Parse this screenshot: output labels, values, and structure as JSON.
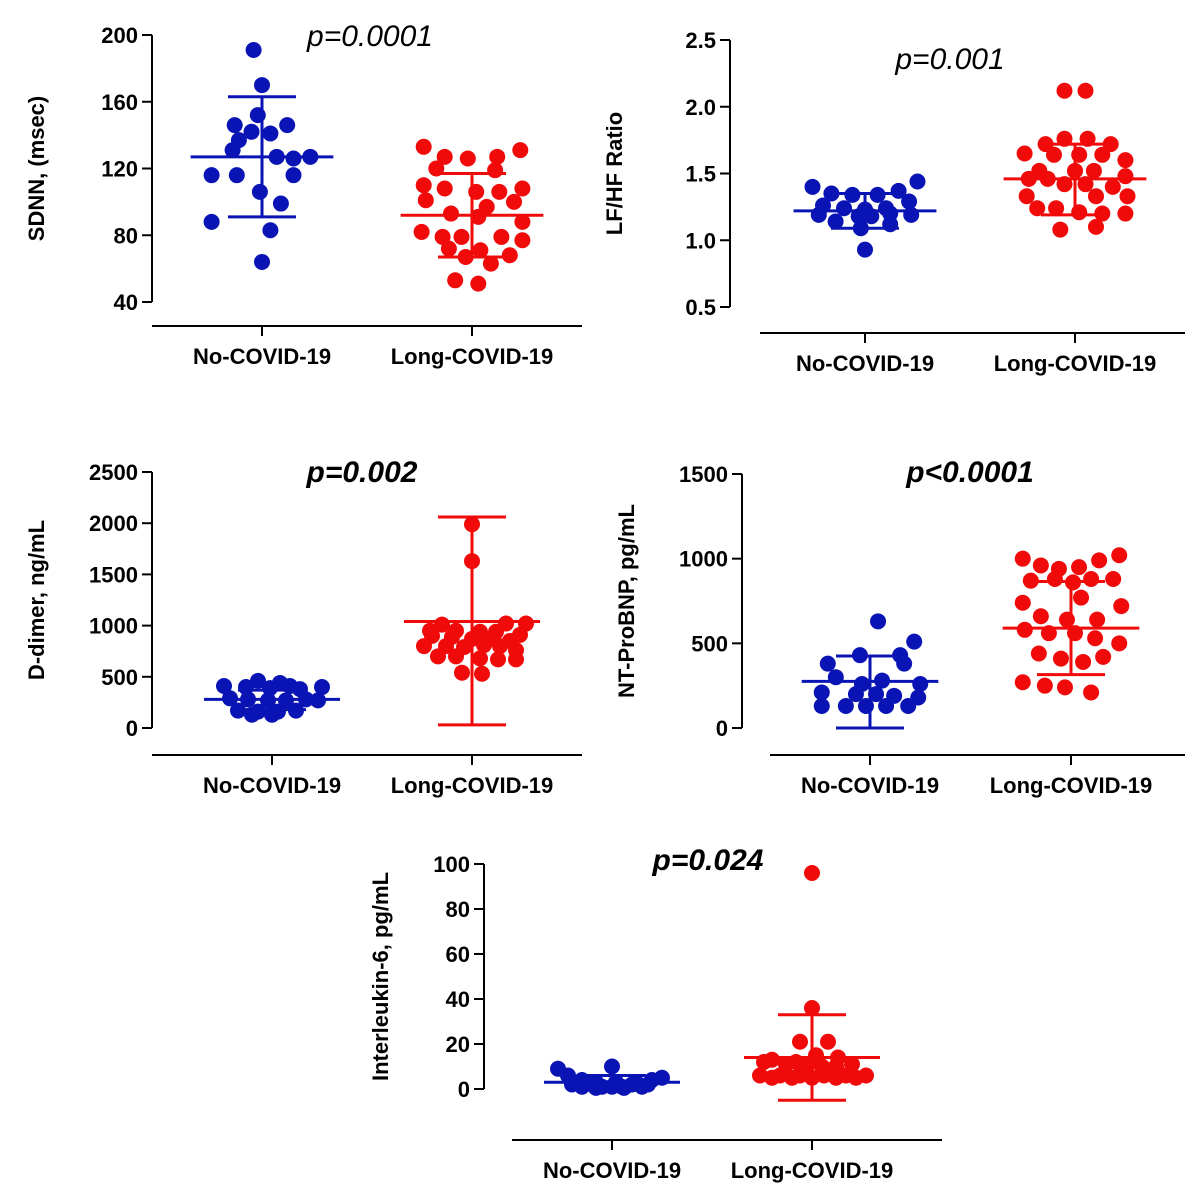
{
  "colors": {
    "no_covid": "#0a14b4",
    "long_covid": "#f00a0a",
    "axis": "#000000"
  },
  "chart_data": [
    {
      "id": "sdnn",
      "type": "scatter",
      "ylabel": "SDNN, (msec)",
      "pvalue": "p=0.0001",
      "pvalue_bold": false,
      "categories": [
        "No-COVID-19",
        "Long-COVID-19"
      ],
      "ylim": [
        40,
        200
      ],
      "yticks": [
        40,
        80,
        120,
        160,
        200
      ],
      "ytick_labels": [
        "40",
        "80",
        "120",
        "160",
        "200"
      ],
      "series": [
        {
          "name": "No-COVID-19",
          "color": "#0a14b4",
          "mean": 127,
          "sd_low": 91,
          "sd_high": 163,
          "x": [
            -0.04,
            0,
            -0.02,
            -0.13,
            -0.05,
            0.04,
            -0.11,
            0.12,
            -0.14,
            0.07,
            0.23,
            0.15,
            -0.24,
            -0.12,
            0.15,
            -0.01,
            0.09,
            -0.24,
            0.04,
            0
          ],
          "y": [
            191,
            170,
            152,
            146,
            142,
            141,
            137,
            146,
            131,
            127,
            127,
            126,
            116,
            116,
            116,
            106,
            99,
            88,
            83,
            64
          ]
        },
        {
          "name": "Long-COVID-19",
          "color": "#f00a0a",
          "mean": 92,
          "sd_low": 67,
          "sd_high": 117,
          "x": [
            -0.23,
            0.23,
            -0.13,
            -0.02,
            0.12,
            -0.17,
            0.11,
            -0.23,
            0.24,
            -0.13,
            0.02,
            0.13,
            -0.22,
            0.2,
            0.07,
            -0.1,
            0.03,
            0.24,
            -0.24,
            -0.14,
            -0.05,
            0.14,
            0.24,
            -0.11,
            0.04,
            0.18,
            -0.03,
            0.09,
            -0.08,
            0.03
          ],
          "y": [
            133,
            131,
            127,
            126,
            127,
            120,
            119,
            110,
            108,
            108,
            106,
            106,
            101,
            100,
            97,
            93,
            91,
            88,
            82,
            79,
            79,
            79,
            77,
            72,
            71,
            68,
            67,
            63,
            53,
            51
          ]
        }
      ]
    },
    {
      "id": "lfhf",
      "type": "scatter",
      "ylabel": "LF/HF Ratio",
      "pvalue": "p=0.001",
      "pvalue_bold": false,
      "categories": [
        "No-COVID-19",
        "Long-COVID-19"
      ],
      "ylim": [
        0.5,
        2.5
      ],
      "yticks": [
        0.5,
        1.0,
        1.5,
        2.0,
        2.5
      ],
      "ytick_labels": [
        "0.5",
        "1.0",
        "1.5",
        "2.0",
        "2.5"
      ],
      "series": [
        {
          "name": "No-COVID-19",
          "color": "#0a14b4",
          "mean": 1.22,
          "sd_low": 1.09,
          "sd_high": 1.35,
          "x": [
            0.25,
            -0.25,
            -0.16,
            0.16,
            -0.06,
            0.06,
            0.21,
            -0.2,
            -0.1,
            0,
            0.1,
            -0.22,
            -0.03,
            0.03,
            0.12,
            0.22,
            -0.14,
            -0.02,
            0.12,
            0
          ],
          "y": [
            1.44,
            1.4,
            1.35,
            1.37,
            1.34,
            1.34,
            1.29,
            1.26,
            1.24,
            1.23,
            1.24,
            1.19,
            1.18,
            1.18,
            1.2,
            1.19,
            1.14,
            1.09,
            1.12,
            0.93
          ]
        },
        {
          "name": "Long-COVID-19",
          "color": "#f00a0a",
          "mean": 1.46,
          "sd_low": 1.19,
          "sd_high": 1.72,
          "x": [
            -0.05,
            0.05,
            -0.05,
            0.06,
            -0.14,
            0.17,
            -0.24,
            -0.1,
            0.02,
            0.13,
            0.24,
            -0.17,
            0,
            0.09,
            0.24,
            -0.22,
            -0.13,
            -0.05,
            0.05,
            0.18,
            -0.23,
            0.1,
            0.25,
            -0.18,
            -0.09,
            0.02,
            0.13,
            0.24,
            -0.07,
            0.1
          ],
          "y": [
            2.12,
            2.12,
            1.76,
            1.76,
            1.72,
            1.72,
            1.65,
            1.64,
            1.64,
            1.64,
            1.6,
            1.52,
            1.52,
            1.52,
            1.48,
            1.46,
            1.46,
            1.42,
            1.42,
            1.4,
            1.33,
            1.33,
            1.33,
            1.24,
            1.24,
            1.21,
            1.2,
            1.2,
            1.08,
            1.1
          ]
        }
      ]
    },
    {
      "id": "ddimer",
      "type": "scatter",
      "ylabel": "D-dimer,  ng/mL",
      "pvalue": "p=0.002",
      "pvalue_bold": true,
      "categories": [
        "No-COVID-19",
        "Long-COVID-19"
      ],
      "ylim": [
        0,
        2500
      ],
      "yticks": [
        0,
        500,
        1000,
        1500,
        2000,
        2500
      ],
      "ytick_labels": [
        "0",
        "500",
        "1000",
        "1500",
        "2000",
        "2500"
      ],
      "series": [
        {
          "name": "No-COVID-19",
          "color": "#0a14b4",
          "mean": 280,
          "sd_low": 180,
          "sd_high": 370,
          "x": [
            -0.07,
            0.04,
            -0.24,
            0.09,
            -0.13,
            -0.01,
            0.14,
            0.25,
            -0.21,
            -0.12,
            -0.02,
            0.07,
            0.17,
            0.23,
            -0.17,
            -0.07,
            0.03,
            0.12,
            -0.1,
            0
          ],
          "y": [
            460,
            440,
            410,
            410,
            400,
            390,
            380,
            400,
            290,
            280,
            270,
            270,
            280,
            270,
            170,
            160,
            160,
            170,
            130,
            130
          ]
        },
        {
          "name": "Long-COVID-19",
          "color": "#f00a0a",
          "mean": 1040,
          "sd_low": 30,
          "sd_high": 2060,
          "x": [
            0,
            0,
            -0.15,
            0.17,
            0.27,
            -0.21,
            -0.08,
            0.04,
            0.12,
            0.24,
            -0.2,
            -0.1,
            0,
            0.09,
            0.19,
            -0.24,
            -0.13,
            -0.04,
            0.06,
            0.14,
            0.22,
            -0.17,
            -0.08,
            0.04,
            0.13,
            0.22,
            -0.05,
            0.05
          ],
          "y": [
            1990,
            1630,
            1010,
            1020,
            1020,
            950,
            950,
            940,
            940,
            910,
            900,
            890,
            870,
            870,
            850,
            800,
            800,
            790,
            810,
            800,
            760,
            700,
            700,
            680,
            670,
            670,
            540,
            530
          ]
        }
      ]
    },
    {
      "id": "ntprobnp",
      "type": "scatter",
      "ylabel": "NT-ProBNP, pg/mL",
      "pvalue": "p<0.0001",
      "pvalue_bold": true,
      "categories": [
        "No-COVID-19",
        "Long-COVID-19"
      ],
      "ylim": [
        0,
        1500
      ],
      "yticks": [
        0,
        500,
        1000,
        1500
      ],
      "ytick_labels": [
        "0",
        "500",
        "1000",
        "1500"
      ],
      "series": [
        {
          "name": "No-COVID-19",
          "color": "#0a14b4",
          "mean": 275,
          "sd_low": 0,
          "sd_high": 425,
          "x": [
            0.04,
            0.22,
            -0.05,
            0.15,
            -0.21,
            0.17,
            -0.17,
            -0.04,
            0.06,
            0.25,
            -0.24,
            -0.07,
            0.03,
            0.12,
            0.24,
            -0.24,
            -0.12,
            -0.02,
            0.08,
            0.19
          ],
          "y": [
            630,
            510,
            430,
            430,
            380,
            380,
            300,
            260,
            280,
            260,
            210,
            200,
            200,
            190,
            180,
            130,
            130,
            130,
            130,
            130
          ]
        },
        {
          "name": "Long-COVID-19",
          "color": "#f00a0a",
          "mean": 590,
          "sd_low": 315,
          "sd_high": 865,
          "x": [
            -0.24,
            -0.15,
            -0.06,
            0.04,
            0.14,
            0.24,
            -0.2,
            -0.08,
            0.01,
            0.1,
            0.21,
            -0.24,
            0.05,
            0.25,
            -0.15,
            -0.02,
            0.13,
            -0.23,
            -0.11,
            0.02,
            0.12,
            0.24,
            -0.16,
            -0.05,
            0.06,
            0.16,
            -0.24,
            -0.13,
            -0.03,
            0.1
          ],
          "y": [
            1000,
            960,
            940,
            950,
            990,
            1020,
            870,
            880,
            860,
            880,
            880,
            740,
            770,
            720,
            660,
            640,
            640,
            580,
            560,
            560,
            530,
            500,
            440,
            410,
            390,
            420,
            270,
            250,
            240,
            210
          ]
        }
      ]
    },
    {
      "id": "il6",
      "type": "scatter",
      "ylabel": "Interleukin-6, pg/mL",
      "pvalue": "p=0.024",
      "pvalue_bold": true,
      "categories": [
        "No-COVID-19",
        "Long-COVID-19"
      ],
      "ylim": [
        0,
        100
      ],
      "yticks": [
        0,
        20,
        40,
        60,
        80,
        100
      ],
      "ytick_labels": [
        "0",
        "20",
        "40",
        "60",
        "80",
        "100"
      ],
      "series": [
        {
          "name": "No-COVID-19",
          "color": "#0a14b4",
          "mean": 3,
          "sd_low": 0,
          "sd_high": 6,
          "x": [
            0.0,
            -0.27,
            0.25,
            -0.22,
            -0.15,
            -0.08,
            0.02,
            0.12,
            0.2,
            -0.2,
            -0.1,
            0,
            0.1,
            0.18,
            -0.15,
            -0.05,
            0.05,
            0.15,
            -0.08,
            0.06
          ],
          "y": [
            10,
            9,
            5,
            6,
            4,
            3,
            3,
            3,
            4,
            2,
            2,
            1,
            2,
            2,
            1,
            1,
            1,
            1,
            0.5,
            0.5
          ]
        },
        {
          "name": "Long-COVID-19",
          "color": "#f00a0a",
          "mean": 14,
          "sd_low": -5,
          "sd_high": 33,
          "x": [
            0,
            0,
            -0.06,
            0.08,
            -0.2,
            0.02,
            0.13,
            -0.08,
            0.05,
            -0.24,
            -0.13,
            -0.02,
            0.12,
            0.2,
            -0.26,
            -0.16,
            -0.06,
            0.06,
            0.17,
            0.27,
            -0.2,
            -0.1,
            0,
            0.12,
            0.22
          ],
          "y": [
            96,
            36,
            21,
            21,
            13,
            15,
            14,
            12,
            10,
            12,
            11,
            11,
            10,
            11,
            6,
            6,
            6,
            6,
            6,
            6,
            5,
            5,
            5,
            5,
            5
          ]
        }
      ]
    }
  ]
}
